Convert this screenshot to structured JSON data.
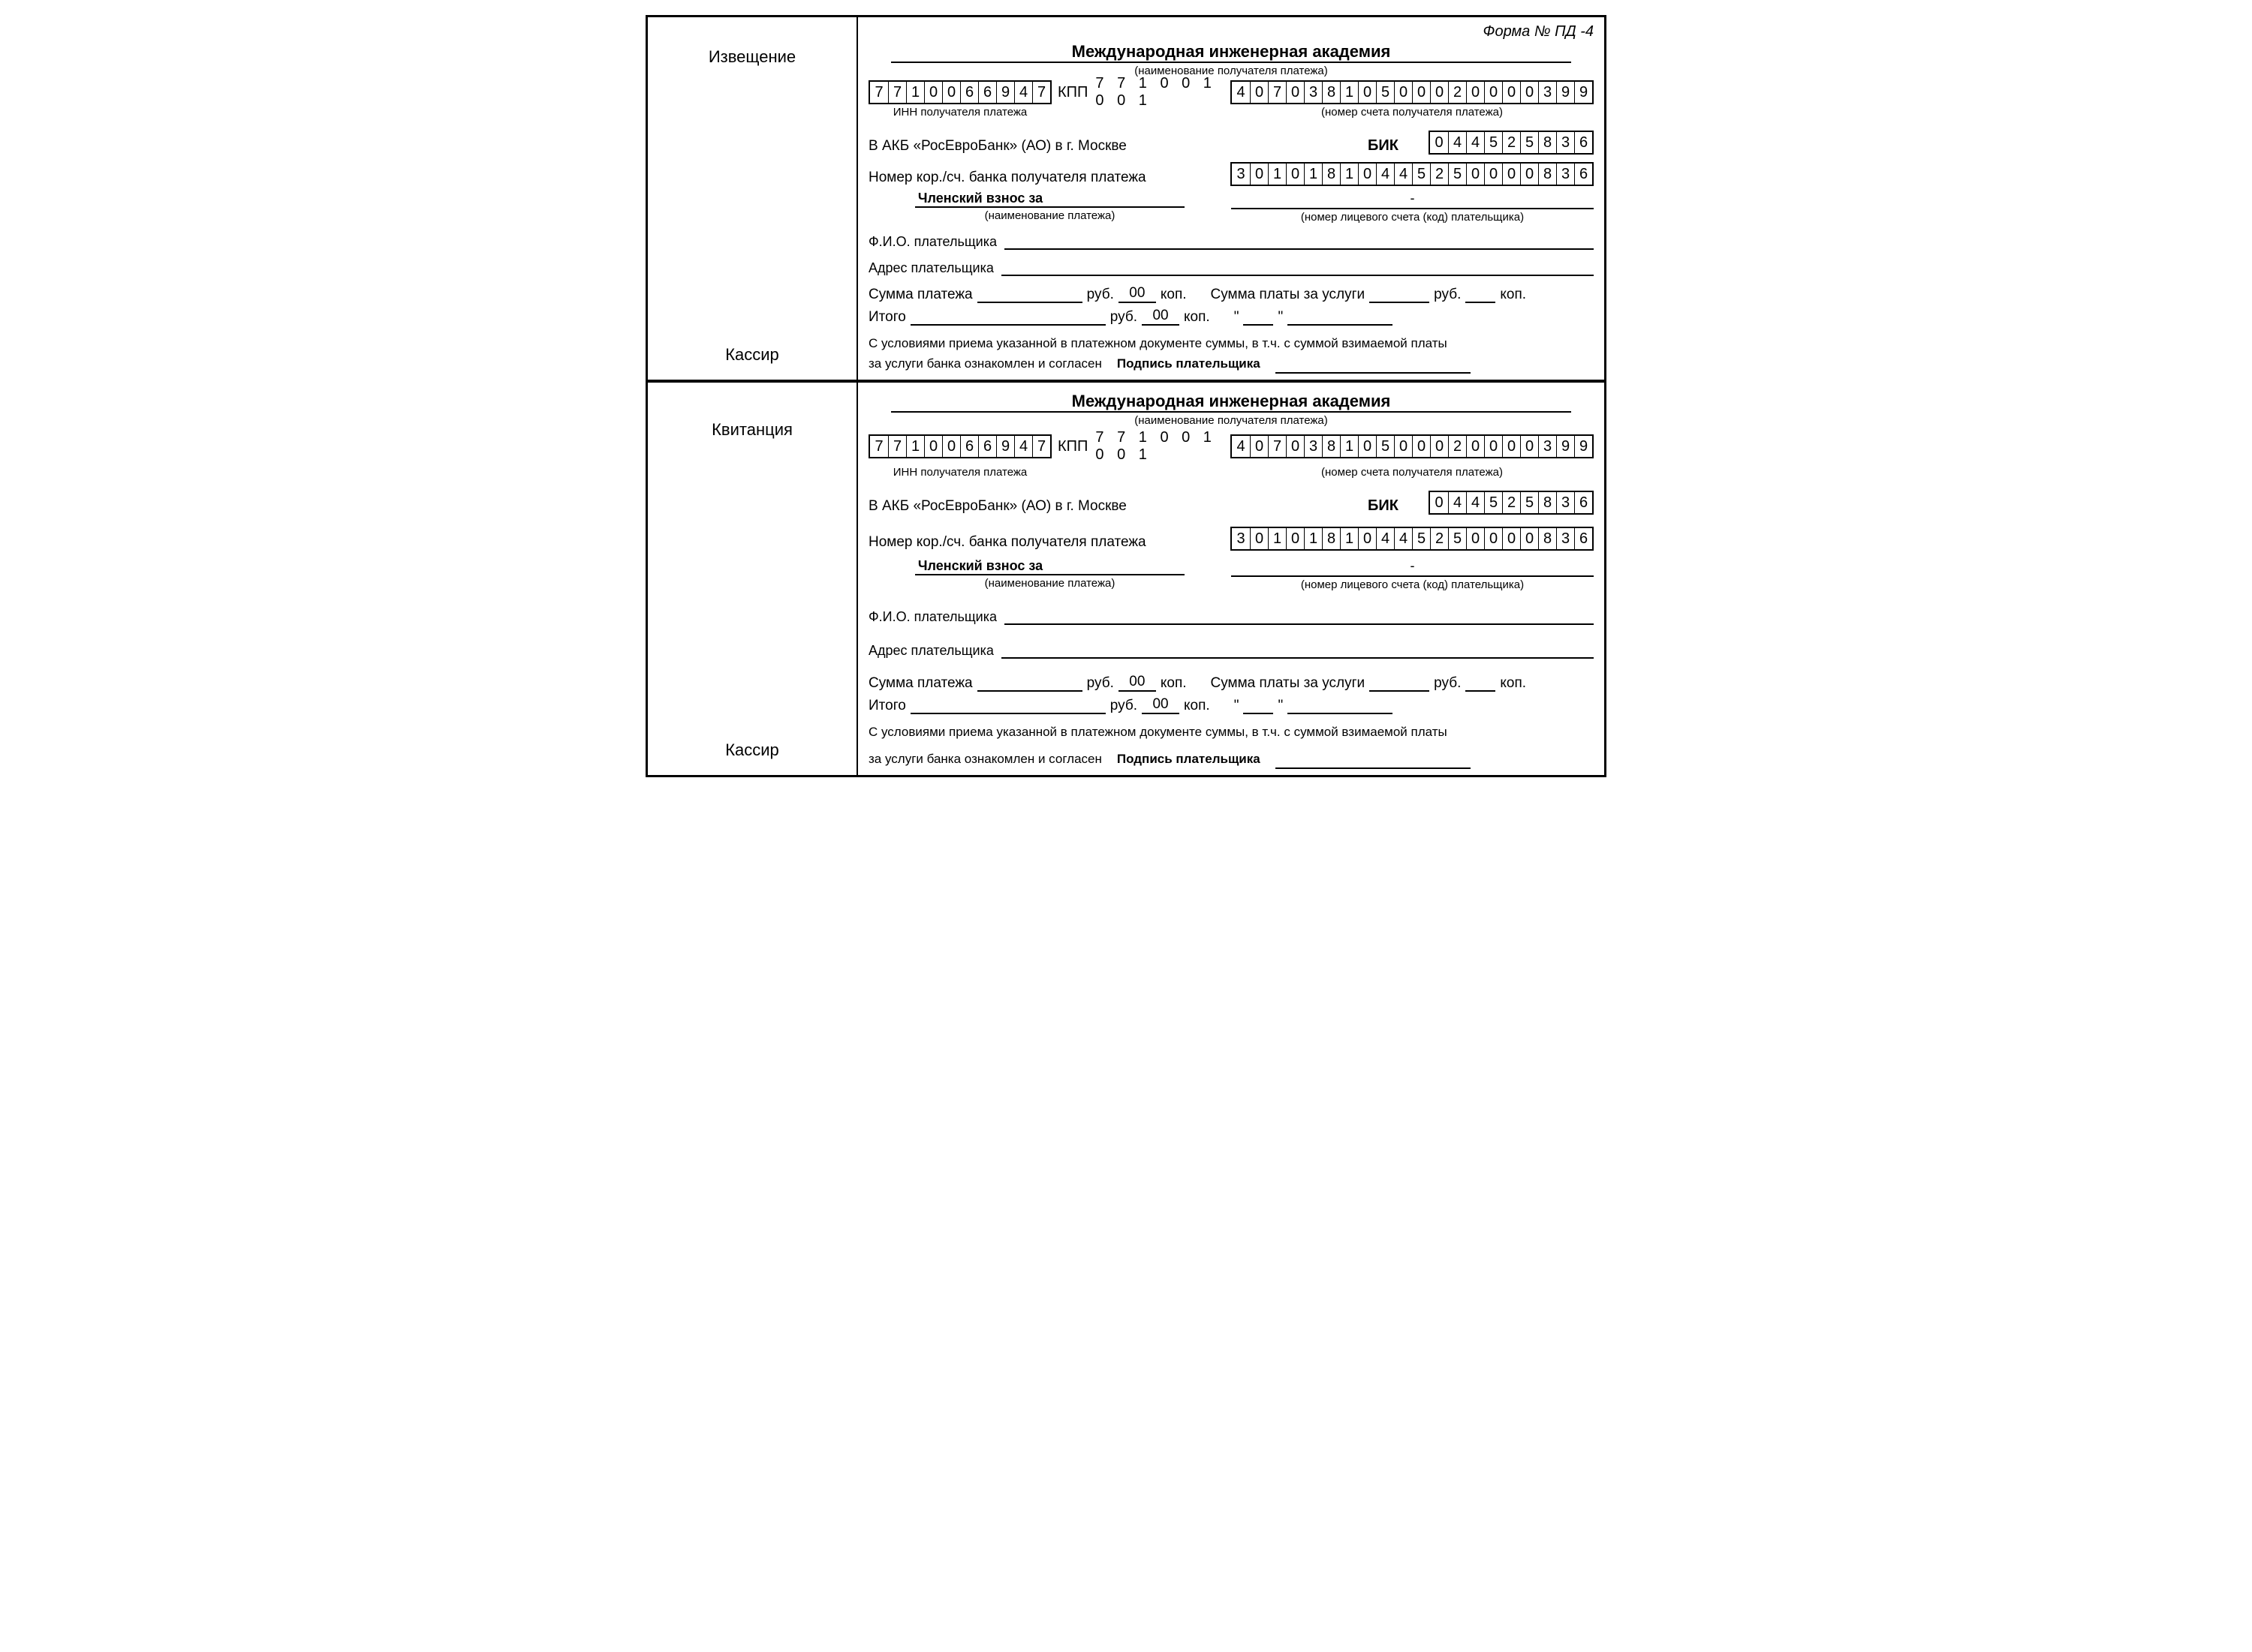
{
  "form_number": "Форма № ПД -4",
  "sections": [
    "Извещение",
    "Квитанция"
  ],
  "cashier_label": "Кассир",
  "recipient_name": "Международная инженерная академия",
  "recipient_caption": "(наименование получателя платежа)",
  "inn": "7710066947",
  "inn_caption": "ИНН получателя платежа",
  "kpp_prefix": "КПП",
  "kpp": "771001001",
  "account": "40703810500020000399",
  "account_caption": "(номер счета получателя платежа)",
  "bank_line": "В  АКБ «РосЕвроБанк» (АО) в г. Москве",
  "bik_label": "БИК",
  "bik": "044525836",
  "corr_label": "Номер кор./сч. банка получателя платежа",
  "corr": "30101810445250000836",
  "purpose_prefix": "Членский взнос за",
  "purpose_caption": "(наименование платежа)",
  "personal_acc_dash": "-",
  "personal_acc_caption": "(номер лицевого счета (код) плательщика)",
  "fio_label": "Ф.И.О. плательщика",
  "addr_label": "Адрес плательщика",
  "sum_label": "Сумма платежа",
  "rub": "руб.",
  "kop": "коп.",
  "kop_value": "00",
  "service_sum_label": "Сумма платы за услуги",
  "total_label": "Итого",
  "quote": "\"",
  "disclaimer1": "С условиями приема указанной в платежном документе суммы, в т.ч. с суммой взимаемой платы",
  "disclaimer2": "за услуги банка ознакомлен и согласен",
  "signature_label": "Подпись плательщика"
}
